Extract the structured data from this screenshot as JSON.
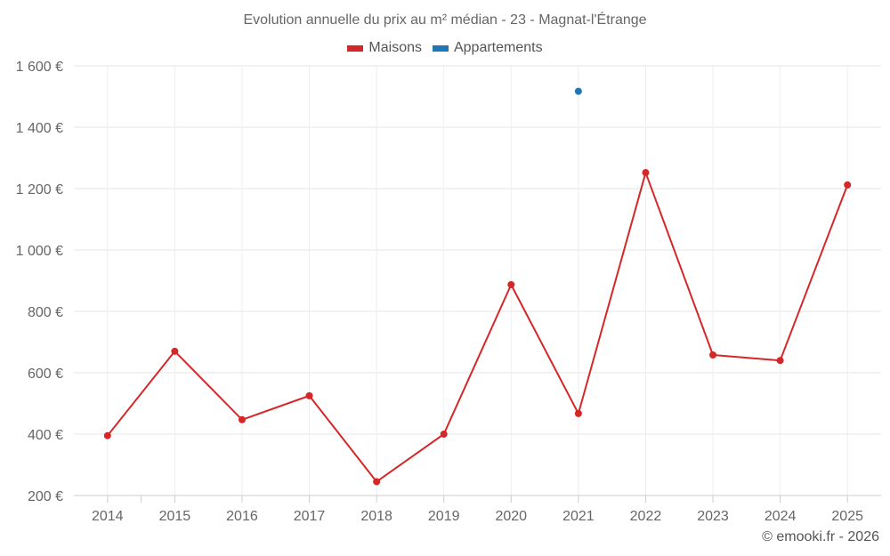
{
  "chart_data": {
    "type": "line",
    "title": "Evolution annuelle du prix au m² médian - 23 - Magnat-l'Étrange",
    "xlabel": "",
    "ylabel": "",
    "categories": [
      "2014",
      "2015",
      "2016",
      "2017",
      "2018",
      "2019",
      "2020",
      "2021",
      "2022",
      "2023",
      "2024",
      "2025"
    ],
    "ylim": [
      200,
      1600
    ],
    "yticks": [
      200,
      400,
      600,
      800,
      1000,
      1200,
      1400,
      1600
    ],
    "ytick_labels": [
      "200 €",
      "400 €",
      "600 €",
      "800 €",
      "1 000 €",
      "1 200 €",
      "1 400 €",
      "1 600 €"
    ],
    "grid": true,
    "legend_position": "top-center",
    "series": [
      {
        "name": "Maisons",
        "color": "#d62728",
        "values": [
          395,
          670,
          447,
          525,
          245,
          400,
          887,
          467,
          1252,
          658,
          640,
          1212
        ]
      },
      {
        "name": "Appartements",
        "color": "#1f77b4",
        "values": [
          null,
          null,
          null,
          null,
          null,
          null,
          null,
          1517,
          null,
          null,
          null,
          null
        ]
      }
    ]
  },
  "credit": "© emooki.fr - 2026"
}
